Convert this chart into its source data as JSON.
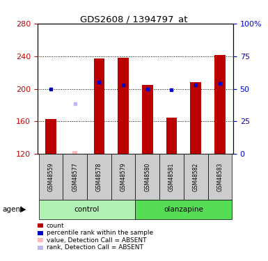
{
  "title": "GDS2608 / 1394797_at",
  "samples": [
    "GSM48559",
    "GSM48577",
    "GSM48578",
    "GSM48579",
    "GSM48580",
    "GSM48581",
    "GSM48582",
    "GSM48583"
  ],
  "groups": [
    {
      "name": "control",
      "color": "#b3f0b3",
      "samples": [
        0,
        1,
        2,
        3
      ]
    },
    {
      "name": "olanzapine",
      "color": "#55dd55",
      "samples": [
        4,
        5,
        6,
        7
      ]
    }
  ],
  "red_bars": [
    163,
    null,
    237,
    238,
    205,
    165,
    208,
    241
  ],
  "blue_dots": [
    200,
    null,
    208,
    205,
    200,
    199,
    205,
    206
  ],
  "pink_bars": [
    null,
    124,
    null,
    null,
    null,
    null,
    null,
    null
  ],
  "lavender_dots": [
    null,
    182,
    null,
    null,
    null,
    null,
    null,
    null
  ],
  "ymin": 120,
  "ymax": 280,
  "yticks_left": [
    120,
    160,
    200,
    240,
    280
  ],
  "yticks_right_vals": [
    0,
    25,
    50,
    75,
    100
  ],
  "bar_width": 0.45,
  "bar_bottom": 120,
  "red_color": "#bb0000",
  "blue_color": "#0000cc",
  "pink_color": "#ffbbbb",
  "lavender_color": "#bbbbee",
  "left_tick_color": "#cc0000",
  "right_tick_color": "#0000cc",
  "grid_color": "#000000",
  "agent_label": "agent",
  "legend_items": [
    {
      "color": "#bb0000",
      "label": "count"
    },
    {
      "color": "#0000cc",
      "label": "percentile rank within the sample"
    },
    {
      "color": "#ffbbbb",
      "label": "value, Detection Call = ABSENT"
    },
    {
      "color": "#bbbbee",
      "label": "rank, Detection Call = ABSENT"
    }
  ]
}
